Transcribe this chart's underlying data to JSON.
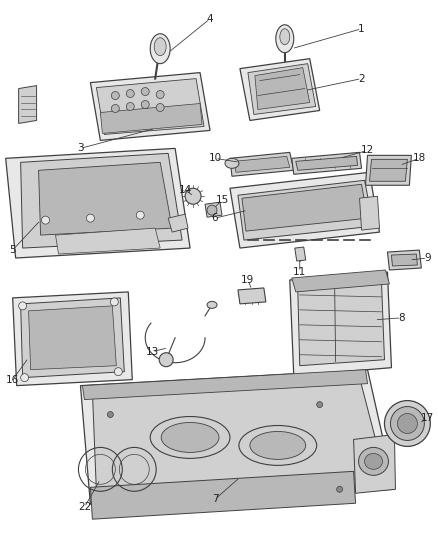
{
  "bg_color": "#ffffff",
  "line_color": "#404040",
  "label_color": "#222222",
  "fill_light": "#e8e8e8",
  "fill_mid": "#d0d0d0",
  "fill_dark": "#b8b8b8"
}
